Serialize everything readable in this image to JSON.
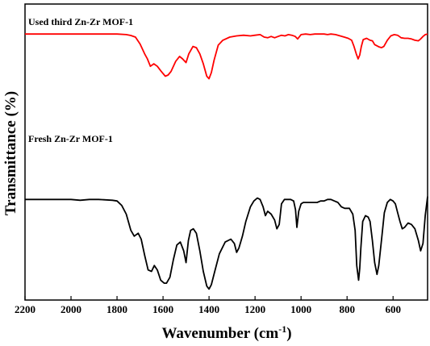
{
  "chart_data": {
    "type": "line",
    "title": "",
    "xlabel": "Wavenumber (cm",
    "xlabel_sup": "-1",
    "xlabel_close": ")",
    "ylabel": "Transmittance  (%)",
    "xlim": [
      2200,
      450
    ],
    "x_reversed": true,
    "x_ticks": [
      2200,
      2000,
      1800,
      1600,
      1400,
      1200,
      1000,
      800,
      600
    ],
    "x_tick_labels": [
      "2200",
      "2000",
      "1800",
      "1600",
      "1400",
      "1200",
      "1000",
      "800",
      "600"
    ],
    "y_ticks_shown": false,
    "ylim": [
      0,
      100
    ],
    "grid": false,
    "series": [
      {
        "name": "Used  third Zn-Zr MOF-1",
        "color": "#ff0000",
        "x": [
          2200,
          1800,
          1760,
          1740,
          1720,
          1700,
          1680,
          1668,
          1655,
          1640,
          1625,
          1608,
          1590,
          1578,
          1565,
          1545,
          1528,
          1515,
          1500,
          1488,
          1470,
          1455,
          1440,
          1425,
          1410,
          1400,
          1390,
          1378,
          1360,
          1340,
          1310,
          1280,
          1250,
          1220,
          1200,
          1178,
          1160,
          1145,
          1130,
          1115,
          1100,
          1085,
          1070,
          1055,
          1040,
          1025,
          1015,
          1000,
          980,
          960,
          940,
          920,
          900,
          885,
          870,
          850,
          830,
          812,
          795,
          780,
          770,
          760,
          752,
          745,
          738,
          730,
          715,
          700,
          690,
          680,
          670,
          660,
          650,
          640,
          625,
          610,
          595,
          580,
          565,
          550,
          535,
          520,
          505,
          490,
          480,
          470,
          460,
          450
        ],
        "y": [
          96,
          96,
          95.5,
          94.8,
          93.5,
          88,
          80,
          76,
          70,
          72,
          70,
          66,
          62,
          63,
          66,
          74,
          78,
          76,
          73,
          80,
          86,
          85,
          80,
          72,
          62,
          60,
          65,
          75,
          87,
          91,
          93.5,
          94.5,
          95,
          94.5,
          95,
          95.5,
          93.5,
          93,
          94,
          93,
          94,
          95,
          94.5,
          95.5,
          95,
          94,
          92,
          95.5,
          96,
          95.5,
          96,
          96,
          96,
          95.5,
          96,
          95.5,
          94.5,
          93.5,
          92.5,
          91,
          86,
          80,
          76,
          79,
          86,
          91.5,
          92.5,
          91,
          90.5,
          87.5,
          86.5,
          85.5,
          85,
          86,
          91,
          94.5,
          95.5,
          95,
          93,
          92.5,
          92.5,
          92,
          91,
          90.5,
          92,
          94,
          95.5,
          96
        ]
      },
      {
        "name": "Fresh Zn-Zr MOF-1",
        "color": "#000000",
        "x": [
          2200,
          2000,
          1960,
          1920,
          1880,
          1820,
          1800,
          1780,
          1760,
          1740,
          1725,
          1708,
          1695,
          1680,
          1665,
          1650,
          1638,
          1625,
          1610,
          1595,
          1585,
          1570,
          1555,
          1540,
          1525,
          1510,
          1500,
          1490,
          1480,
          1468,
          1455,
          1440,
          1425,
          1410,
          1400,
          1390,
          1375,
          1355,
          1330,
          1305,
          1290,
          1280,
          1270,
          1255,
          1240,
          1220,
          1205,
          1190,
          1178,
          1165,
          1155,
          1145,
          1130,
          1115,
          1105,
          1095,
          1085,
          1072,
          1060,
          1045,
          1032,
          1024,
          1018,
          1010,
          1000,
          990,
          975,
          960,
          945,
          930,
          915,
          900,
          885,
          870,
          855,
          840,
          825,
          810,
          790,
          775,
          765,
          758,
          750,
          745,
          740,
          732,
          720,
          708,
          700,
          690,
          680,
          670,
          662,
          650,
          638,
          625,
          612,
          600,
          590,
          580,
          570,
          560,
          550,
          535,
          520,
          505,
          490,
          480,
          470,
          460,
          450
        ],
        "y": [
          63,
          63,
          62.5,
          63,
          63,
          62.5,
          62,
          59,
          53,
          42,
          38,
          40,
          36,
          25,
          15,
          14,
          18,
          15,
          8,
          6,
          6,
          10,
          22,
          32,
          34,
          28,
          20,
          35,
          42,
          43,
          40,
          28,
          14,
          4,
          2,
          5,
          14,
          26,
          34,
          36,
          33,
          27,
          30,
          38,
          48,
          58,
          62,
          64,
          63,
          58,
          52,
          55,
          53,
          49,
          43,
          46,
          60,
          63,
          63,
          63,
          62,
          56,
          44,
          55,
          60,
          61,
          61,
          61,
          61,
          61,
          62,
          62,
          63,
          63,
          62,
          61,
          58,
          57,
          57,
          53,
          42,
          18,
          8,
          16,
          30,
          48,
          52,
          51,
          48,
          35,
          20,
          12,
          18,
          36,
          54,
          61,
          63,
          62,
          60,
          54,
          48,
          43,
          44,
          47,
          46,
          43,
          35,
          28,
          33,
          52,
          65
        ]
      }
    ]
  }
}
